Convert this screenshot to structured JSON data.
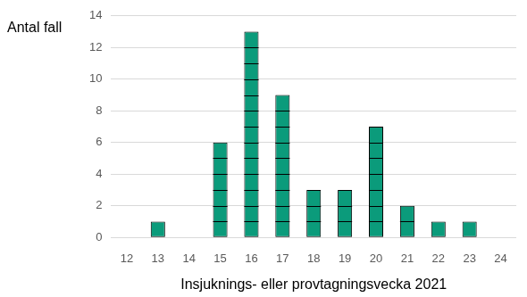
{
  "chart_data": {
    "type": "bar",
    "y_label": "Antal fall",
    "x_label": "Insjuknings- eller provtagningsvecka 2021",
    "categories": [
      12,
      13,
      14,
      15,
      16,
      17,
      18,
      19,
      20,
      21,
      22,
      23,
      24
    ],
    "values": [
      0,
      1,
      0,
      6,
      13,
      9,
      3,
      3,
      7,
      2,
      1,
      1,
      0
    ],
    "color": "#0b9b7b",
    "ylim": [
      0,
      14
    ],
    "yticks": [
      0,
      2,
      4,
      6,
      8,
      10,
      12,
      14
    ],
    "grid": true
  }
}
